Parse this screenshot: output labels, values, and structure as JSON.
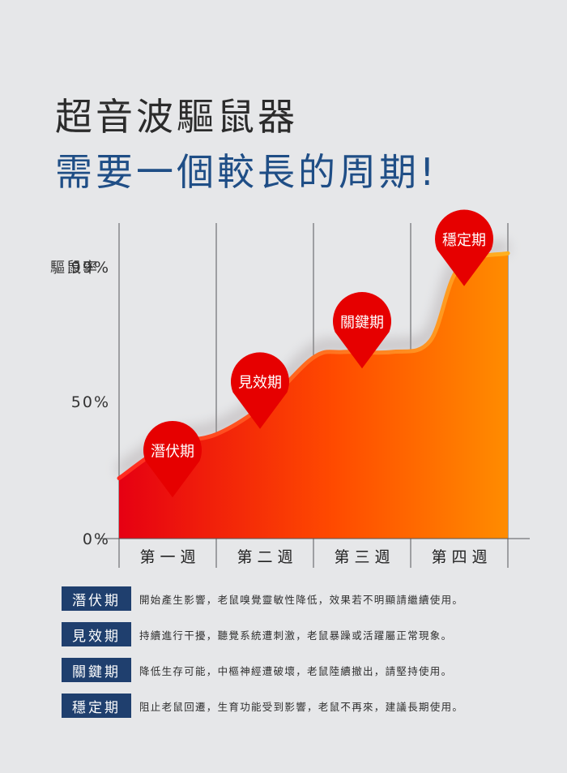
{
  "header": {
    "title_line1": "超音波驅鼠器",
    "title_line2": "需要一個較長的周期!"
  },
  "chart_data": {
    "type": "area",
    "ylabel": "驅鼠率",
    "y_ticks": [
      "0%",
      "50%",
      "99%"
    ],
    "categories": [
      "第一週",
      "第二週",
      "第三週",
      "第四週"
    ],
    "category_labels": [
      "第 一 週",
      "第 二 週",
      "第 三 週",
      "第 四 週"
    ],
    "x": [
      0,
      0.5,
      1,
      1.5,
      2,
      2.3,
      2.8,
      3.2,
      3.5,
      4
    ],
    "values": [
      22,
      34,
      38,
      49,
      66,
      68,
      68,
      72,
      99,
      104
    ],
    "ylim": [
      0,
      115
    ],
    "grid": "vertical",
    "colors": {
      "start": "#e60012",
      "end": "#ff8c00",
      "marker": "#e60000"
    },
    "annotations": [
      {
        "label": "潛伏期",
        "week": 1
      },
      {
        "label": "見效期",
        "week": 2
      },
      {
        "label": "關鍵期",
        "week": 3
      },
      {
        "label": "穩定期",
        "week": 4
      }
    ]
  },
  "legend": [
    {
      "tag": "潛伏期",
      "desc": "開始產生影響，老鼠嗅覺靈敏性降低，效果若不明顯請繼續使用。"
    },
    {
      "tag": "見效期",
      "desc": "持續進行干擾，聽覺系統遭刺激，老鼠暴躁或活躍屬正常現象。"
    },
    {
      "tag": "關鍵期",
      "desc": "降低生存可能，中樞神經遭破壞，老鼠陸續撤出，請堅持使用。"
    },
    {
      "tag": "穩定期",
      "desc": "阻止老鼠回遷，生育功能受到影響，老鼠不再來，建議長期使用。"
    }
  ]
}
